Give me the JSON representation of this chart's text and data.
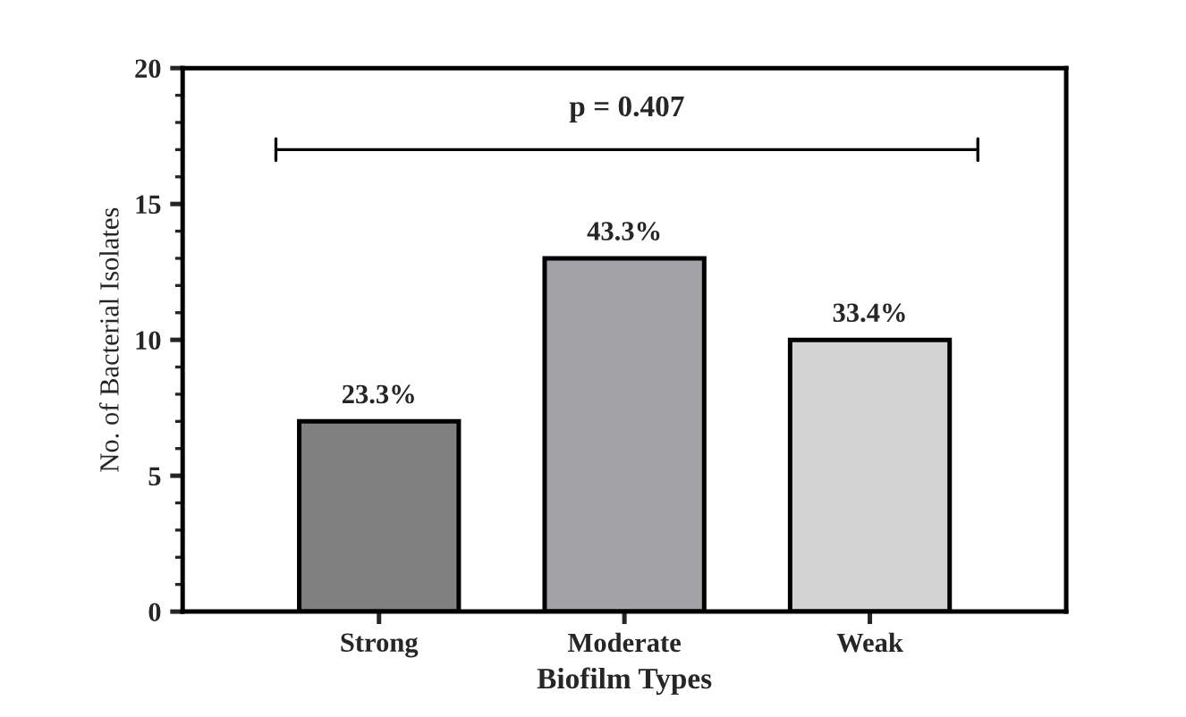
{
  "chart_data": {
    "type": "bar",
    "xlabel": "Biofilm Types",
    "ylabel": "No. of Bacterial Isolates",
    "categories": [
      "Strong",
      "Moderate",
      "Weak"
    ],
    "values": [
      7,
      13,
      10
    ],
    "colors": [
      "#808080",
      "#a3a2a6",
      "#d3d3d3"
    ],
    "annotations": [
      "p = 0.407",
      {
        "text": "23.3%",
        "x": "Strong",
        "y": 7
      },
      {
        "text": "43.3%",
        "x": "Moderate",
        "y": 13
      },
      {
        "text": "33.4%",
        "x": "Weak",
        "y": 10
      }
    ],
    "ylim": [
      0,
      20
    ],
    "yticks": [
      0,
      5,
      10,
      15,
      20
    ],
    "grid": false,
    "legend": false
  }
}
